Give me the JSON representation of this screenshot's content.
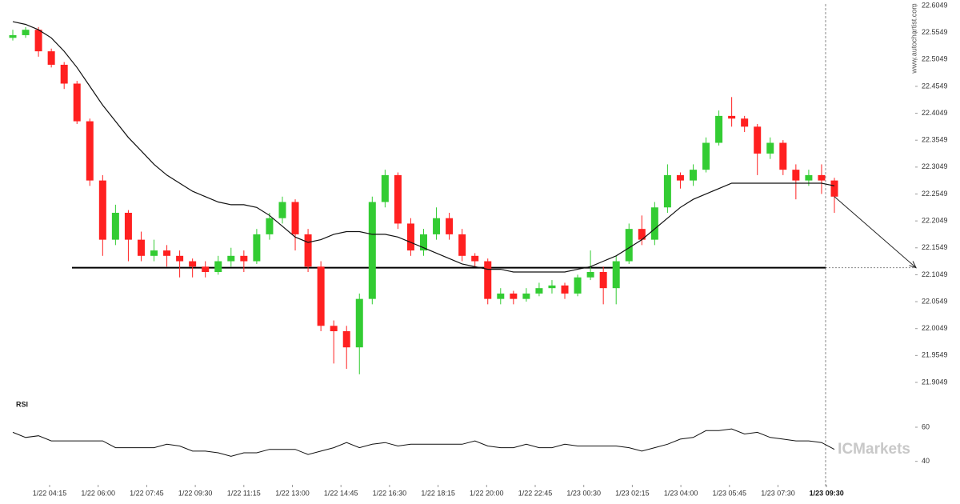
{
  "chart_data": [
    {
      "type": "candlestick",
      "source": "www.autochartist.com",
      "watermark": "ICMarkets",
      "up_color": "#33cc33",
      "down_color": "#ff2020",
      "open": [
        22.545,
        22.55,
        22.56,
        22.52,
        22.495,
        22.46,
        22.39,
        22.28,
        22.17,
        22.22,
        22.17,
        22.14,
        22.15,
        22.14,
        22.13,
        22.12,
        22.11,
        22.13,
        22.14,
        22.13,
        22.18,
        22.21,
        22.24,
        22.18,
        22.12,
        22.01,
        22.0,
        21.97,
        22.06,
        22.24,
        22.29,
        22.2,
        22.15,
        22.18,
        22.21,
        22.18,
        22.14,
        22.13,
        22.06,
        22.07,
        22.06,
        22.07,
        22.08,
        22.085,
        22.07,
        22.1,
        22.11,
        22.08,
        22.13,
        22.19,
        22.17,
        22.23,
        22.29,
        22.28,
        22.3,
        22.35,
        22.4,
        22.395,
        22.38,
        22.33,
        22.35,
        22.3,
        22.28,
        22.29,
        22.28
      ],
      "high": [
        22.56,
        22.565,
        22.565,
        22.525,
        22.5,
        22.465,
        22.395,
        22.29,
        22.235,
        22.225,
        22.185,
        22.17,
        22.16,
        22.15,
        22.135,
        22.13,
        22.14,
        22.155,
        22.15,
        22.19,
        22.22,
        22.25,
        22.245,
        22.19,
        22.13,
        22.02,
        22.01,
        22.07,
        22.25,
        22.3,
        22.295,
        22.21,
        22.19,
        22.23,
        22.22,
        22.19,
        22.145,
        22.135,
        22.08,
        22.075,
        22.08,
        22.09,
        22.095,
        22.09,
        22.105,
        22.15,
        22.12,
        22.14,
        22.2,
        22.215,
        22.24,
        22.31,
        22.295,
        22.31,
        22.36,
        22.41,
        22.435,
        22.4,
        22.385,
        22.36,
        22.355,
        22.31,
        22.3,
        22.31,
        22.285
      ],
      "low": [
        22.54,
        22.545,
        22.51,
        22.49,
        22.45,
        22.385,
        22.27,
        22.14,
        22.16,
        22.13,
        22.13,
        22.13,
        22.12,
        22.1,
        22.1,
        22.1,
        22.105,
        22.12,
        22.11,
        22.125,
        22.17,
        22.2,
        22.15,
        22.11,
        22.0,
        21.94,
        21.93,
        21.92,
        22.05,
        22.23,
        22.19,
        22.14,
        22.14,
        22.17,
        22.17,
        22.13,
        22.12,
        22.05,
        22.05,
        22.05,
        22.055,
        22.065,
        22.07,
        22.06,
        22.065,
        22.095,
        22.05,
        22.05,
        22.125,
        22.16,
        22.16,
        22.22,
        22.265,
        22.27,
        22.295,
        22.345,
        22.38,
        22.37,
        22.29,
        22.32,
        22.29,
        22.245,
        22.27,
        22.255,
        22.22
      ],
      "close": [
        22.55,
        22.56,
        22.52,
        22.495,
        22.46,
        22.39,
        22.28,
        22.17,
        22.22,
        22.17,
        22.14,
        22.15,
        22.14,
        22.13,
        22.12,
        22.11,
        22.13,
        22.14,
        22.13,
        22.18,
        22.21,
        22.24,
        22.18,
        22.12,
        22.01,
        22.0,
        21.97,
        22.06,
        22.24,
        22.29,
        22.2,
        22.15,
        22.18,
        22.21,
        22.18,
        22.14,
        22.13,
        22.06,
        22.07,
        22.06,
        22.07,
        22.08,
        22.085,
        22.07,
        22.1,
        22.11,
        22.08,
        22.13,
        22.19,
        22.17,
        22.23,
        22.29,
        22.28,
        22.3,
        22.35,
        22.4,
        22.395,
        22.38,
        22.33,
        22.35,
        22.3,
        22.28,
        22.29,
        22.28,
        22.25
      ],
      "moving_average": [
        22.575,
        22.57,
        22.56,
        22.545,
        22.52,
        22.49,
        22.455,
        22.42,
        22.39,
        22.36,
        22.335,
        22.31,
        22.29,
        22.275,
        22.26,
        22.25,
        22.24,
        22.235,
        22.235,
        22.23,
        22.215,
        22.195,
        22.175,
        22.165,
        22.17,
        22.18,
        22.185,
        22.185,
        22.18,
        22.18,
        22.175,
        22.165,
        22.155,
        22.145,
        22.135,
        22.125,
        22.12,
        22.115,
        22.115,
        22.11,
        22.11,
        22.11,
        22.11,
        22.11,
        22.115,
        22.12,
        22.13,
        22.14,
        22.155,
        22.17,
        22.19,
        22.21,
        22.23,
        22.245,
        22.255,
        22.265,
        22.275,
        22.275,
        22.275,
        22.275,
        22.275,
        22.275,
        22.275,
        22.275,
        22.27
      ],
      "level": 22.118,
      "ylim": [
        21.9049,
        22.6049
      ],
      "yticks": [
        22.6049,
        22.5549,
        22.5049,
        22.4549,
        22.4049,
        22.3549,
        22.3049,
        22.2549,
        22.2049,
        22.1549,
        22.1049,
        22.0549,
        22.0049,
        21.9549,
        21.9049
      ],
      "xticks": [
        "1/22 04:15",
        "1/22 06:00",
        "1/22 07:45",
        "1/22 09:30",
        "1/22 11:15",
        "1/22 13:00",
        "1/22 14:45",
        "1/22 16:30",
        "1/22 18:15",
        "1/22 20:00",
        "1/22 22:45",
        "1/23 00:30",
        "1/23 02:15",
        "1/23 04:00",
        "1/23 05:45",
        "1/23 07:30",
        "1/23 09:30"
      ]
    },
    {
      "type": "line",
      "title": "RSI",
      "values": [
        57,
        54,
        55,
        52,
        52,
        52,
        52,
        52,
        48,
        48,
        48,
        48,
        50,
        49,
        46,
        46,
        45,
        43,
        45,
        45,
        47,
        47,
        47,
        44,
        46,
        48,
        51,
        48,
        50,
        51,
        49,
        50,
        50,
        50,
        50,
        50,
        52,
        49,
        48,
        48,
        50,
        48,
        48,
        50,
        49,
        49,
        49,
        49,
        48,
        46,
        48,
        50,
        53,
        54,
        58,
        58,
        59,
        56,
        57,
        54,
        53,
        52,
        52,
        51,
        47
      ],
      "ylim": [
        30,
        75
      ],
      "yticks": [
        40,
        60
      ]
    }
  ]
}
